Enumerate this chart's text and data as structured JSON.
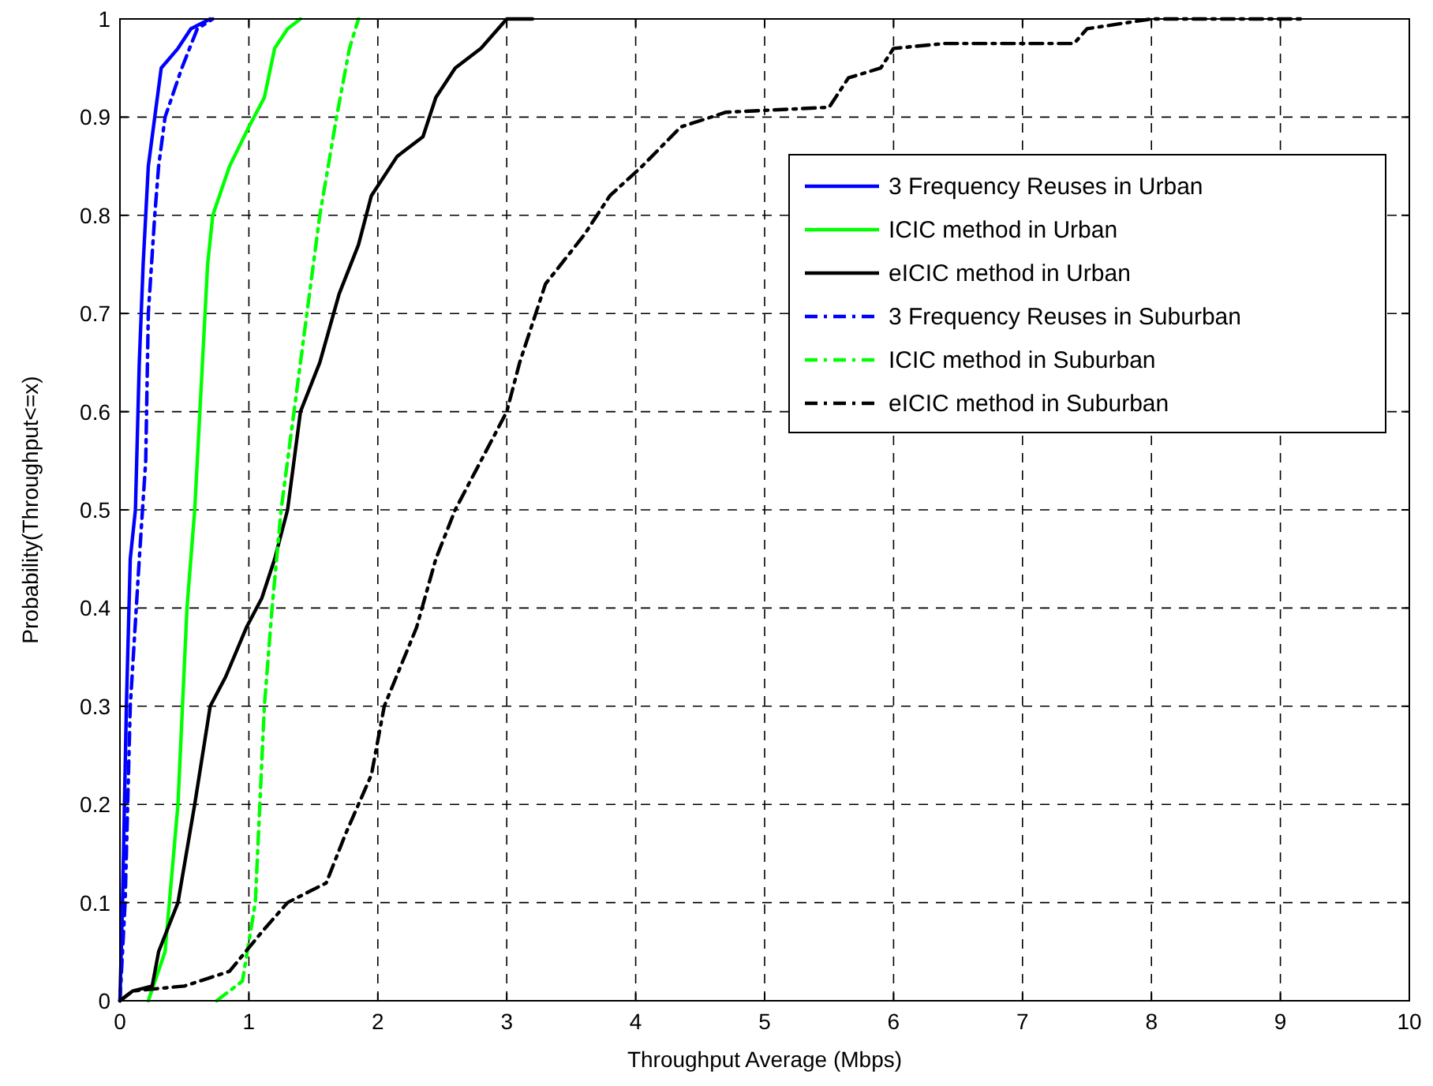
{
  "chart_data": {
    "type": "line",
    "xlabel": "Throughput Average (Mbps)",
    "ylabel": "Probability(Throughput<=x)",
    "xlim": [
      0,
      10
    ],
    "ylim": [
      0,
      1
    ],
    "xticks": [
      0,
      1,
      2,
      3,
      4,
      5,
      6,
      7,
      8,
      9,
      10
    ],
    "yticks": [
      0,
      0.1,
      0.2,
      0.3,
      0.4,
      0.5,
      0.6,
      0.7,
      0.8,
      0.9,
      1
    ],
    "grid": true,
    "legend": "top right",
    "series": [
      {
        "name": "3 Frequency Reuses in Urban",
        "color": "#0000ff",
        "line_style": "solid",
        "x": [
          0,
          0.02,
          0.05,
          0.08,
          0.12,
          0.15,
          0.18,
          0.22,
          0.27,
          0.32,
          0.45,
          0.55,
          0.7
        ],
        "values": [
          0,
          0.1,
          0.3,
          0.45,
          0.5,
          0.65,
          0.75,
          0.85,
          0.9,
          0.95,
          0.97,
          0.99,
          1
        ]
      },
      {
        "name": "ICIC method in Urban",
        "color": "#00ff00",
        "line_style": "solid",
        "x": [
          0.22,
          0.35,
          0.45,
          0.52,
          0.58,
          0.62,
          0.68,
          0.72,
          0.85,
          1.0,
          1.12,
          1.2,
          1.3,
          1.4
        ],
        "values": [
          0,
          0.05,
          0.2,
          0.4,
          0.5,
          0.6,
          0.75,
          0.8,
          0.85,
          0.89,
          0.92,
          0.97,
          0.99,
          1
        ]
      },
      {
        "name": "eICIC method in Urban",
        "color": "#000000",
        "line_style": "solid",
        "x": [
          0,
          0.1,
          0.25,
          0.3,
          0.45,
          0.58,
          0.7,
          0.82,
          0.98,
          1.1,
          1.2,
          1.3,
          1.4,
          1.55,
          1.7,
          1.85,
          1.95,
          2.15,
          2.35,
          2.45,
          2.6,
          2.8,
          3.0,
          3.2
        ],
        "values": [
          0,
          0.01,
          0.015,
          0.05,
          0.1,
          0.2,
          0.3,
          0.33,
          0.38,
          0.41,
          0.45,
          0.5,
          0.6,
          0.65,
          0.72,
          0.77,
          0.82,
          0.86,
          0.88,
          0.92,
          0.95,
          0.97,
          1,
          1
        ]
      },
      {
        "name": "3 Frequency Reuses in Suburban",
        "color": "#0000ff",
        "line_style": "dashdot",
        "x": [
          0,
          0.04,
          0.08,
          0.15,
          0.2,
          0.22,
          0.27,
          0.3,
          0.35,
          0.48,
          0.6,
          0.72
        ],
        "values": [
          0,
          0.1,
          0.3,
          0.45,
          0.55,
          0.7,
          0.8,
          0.85,
          0.9,
          0.95,
          0.99,
          1
        ]
      },
      {
        "name": "ICIC method in Suburban",
        "color": "#00ff00",
        "line_style": "dashdot",
        "x": [
          0.75,
          0.95,
          1.05,
          1.12,
          1.18,
          1.25,
          1.35,
          1.45,
          1.55,
          1.68,
          1.78,
          1.85
        ],
        "values": [
          0,
          0.02,
          0.1,
          0.3,
          0.4,
          0.5,
          0.6,
          0.7,
          0.8,
          0.9,
          0.97,
          1
        ]
      },
      {
        "name": "eICIC method in Suburban",
        "color": "#000000",
        "line_style": "dashdot",
        "x": [
          0,
          0.1,
          0.5,
          0.85,
          1.1,
          1.3,
          1.6,
          1.75,
          1.95,
          2.05,
          2.3,
          2.45,
          2.6,
          2.8,
          3.0,
          3.1,
          3.3,
          3.6,
          3.8,
          4.05,
          4.35,
          4.7,
          5.5,
          5.65,
          5.9,
          6.0,
          6.4,
          7.4,
          7.5,
          8.0,
          9.2
        ],
        "values": [
          0,
          0.01,
          0.015,
          0.03,
          0.07,
          0.1,
          0.12,
          0.17,
          0.23,
          0.3,
          0.38,
          0.45,
          0.5,
          0.55,
          0.6,
          0.65,
          0.73,
          0.78,
          0.82,
          0.85,
          0.89,
          0.905,
          0.91,
          0.94,
          0.95,
          0.97,
          0.975,
          0.975,
          0.99,
          1,
          1
        ]
      }
    ]
  }
}
